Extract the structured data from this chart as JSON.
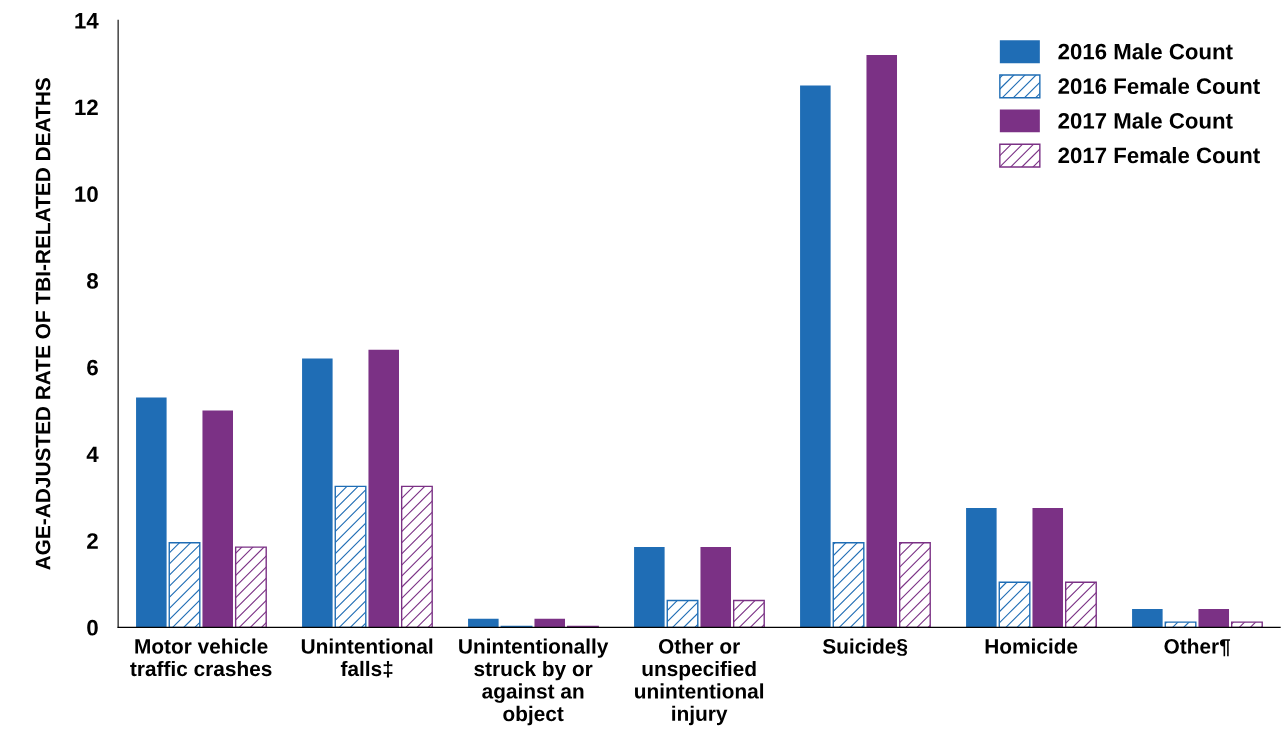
{
  "chart_data": {
    "type": "bar",
    "ylabel": "AGE-ADJUSTED RATE OF TBI-RELATED DEATHS",
    "categories": [
      "Motor vehicle\ntraffic crashes",
      "Unintentional\nfalls‡",
      "Unintentionally\nstruck by or\nagainst an\nobject",
      "Other or\nunspecified\nunintentional\ninjury",
      "Suicide§",
      "Homicide",
      "Other¶"
    ],
    "series": [
      {
        "name": "2016 Male Count",
        "color": "#1f6db5",
        "values": [
          5.3,
          6.2,
          0.2,
          1.85,
          12.5,
          2.75,
          0.42
        ]
      },
      {
        "name": "2016 Female Count",
        "color": "#1f6db5",
        "values": [
          1.95,
          3.25,
          0.02,
          0.62,
          1.95,
          1.04,
          0.12
        ]
      },
      {
        "name": "2017 Male Count",
        "color": "#7b3185",
        "values": [
          5.0,
          6.4,
          0.2,
          1.85,
          13.2,
          2.75,
          0.42
        ]
      },
      {
        "name": "2017 Female Count",
        "color": "#7b3185",
        "values": [
          1.85,
          3.25,
          0.02,
          0.62,
          1.95,
          1.04,
          0.12
        ]
      }
    ],
    "ylim": [
      0,
      14
    ],
    "yticks": [
      0,
      2,
      4,
      6,
      8,
      10,
      12,
      14
    ],
    "grid": false,
    "legend": "top right"
  }
}
